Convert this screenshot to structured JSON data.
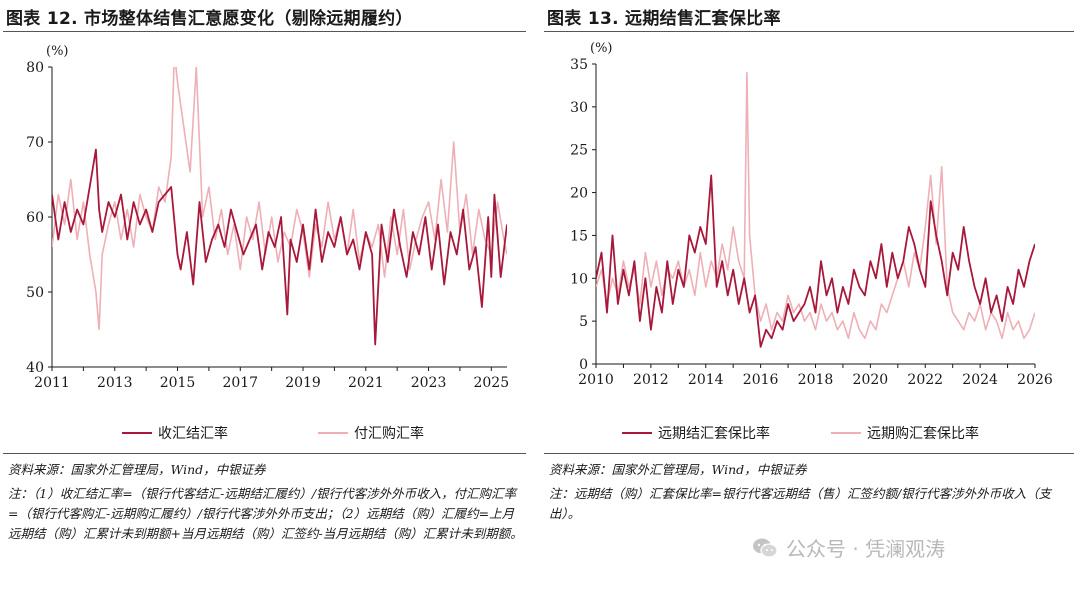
{
  "colors": {
    "primary": "#a8183a",
    "secondary": "#eeb0b6",
    "axis": "#1a1a1a"
  },
  "left": {
    "title": "图表 12.  市场整体结售汇意愿变化（剔除远期履约）",
    "unit": "(%)",
    "source": "资料来源：国家外汇管理局，Wind，中银证券",
    "note": "注：（1）收汇结汇率=（银行代客结汇-远期结汇履约）/银行代客涉外外币收入，付汇购汇率=（银行代客购汇-远期购汇履约）/银行代客涉外外币支出；（2）远期结（购）汇履约=上月远期结（购）汇累计未到期额+当月远期结（购）汇签约-当月远期结（购）汇累计未到期额。",
    "legend": [
      "收汇结汇率",
      "付汇购汇率"
    ]
  },
  "right": {
    "title": "图表 13.  远期结售汇套保比率",
    "unit": "(%)",
    "source": "资料来源：国家外汇管理局，Wind，中银证券",
    "note": "注：远期结（购）汇套保比率=银行代客远期结（售）汇签约额/银行代客涉外外币收入（支出）。",
    "legend": [
      "远期结汇套保比率",
      "远期购汇套保比率"
    ]
  },
  "watermark": {
    "text": "公众号 · 凭澜观涛",
    "icon": "wechat-icon"
  },
  "chart_data": [
    {
      "type": "line",
      "title": "图表 12.  市场整体结售汇意愿变化（剔除远期履约）",
      "ylabel": "(%)",
      "ylim": [
        40,
        80
      ],
      "yticks": [
        40,
        50,
        60,
        70,
        80
      ],
      "xlim": [
        2011,
        2025.5
      ],
      "xticks": [
        2011,
        2013,
        2015,
        2017,
        2019,
        2021,
        2023,
        2025
      ],
      "legend_position": "bottom",
      "series": [
        {
          "name": "收汇结汇率",
          "x": [
            2011.0,
            2011.2,
            2011.4,
            2011.6,
            2011.8,
            2012.0,
            2012.2,
            2012.4,
            2012.5,
            2012.6,
            2012.8,
            2013.0,
            2013.2,
            2013.4,
            2013.6,
            2013.8,
            2014.0,
            2014.2,
            2014.4,
            2014.6,
            2014.8,
            2015.0,
            2015.1,
            2015.3,
            2015.5,
            2015.7,
            2015.9,
            2016.1,
            2016.3,
            2016.5,
            2016.7,
            2016.9,
            2017.1,
            2017.3,
            2017.5,
            2017.7,
            2017.9,
            2018.1,
            2018.3,
            2018.5,
            2018.6,
            2018.8,
            2019.0,
            2019.2,
            2019.4,
            2019.6,
            2019.8,
            2020.0,
            2020.2,
            2020.4,
            2020.6,
            2020.8,
            2021.0,
            2021.2,
            2021.3,
            2021.5,
            2021.7,
            2021.9,
            2022.1,
            2022.3,
            2022.5,
            2022.7,
            2022.9,
            2023.1,
            2023.3,
            2023.5,
            2023.7,
            2023.9,
            2024.1,
            2024.3,
            2024.5,
            2024.7,
            2024.9,
            2025.0,
            2025.1,
            2025.3,
            2025.5
          ],
          "values": [
            63,
            57,
            62,
            58,
            61,
            59,
            64,
            69,
            61,
            58,
            62,
            60,
            63,
            57,
            62,
            59,
            61,
            58,
            62,
            63,
            64,
            55,
            53,
            58,
            51,
            62,
            54,
            57,
            59,
            56,
            61,
            58,
            55,
            57,
            59,
            53,
            58,
            56,
            60,
            47,
            57,
            54,
            59,
            53,
            61,
            54,
            58,
            56,
            60,
            55,
            57,
            53,
            58,
            55,
            43,
            59,
            54,
            61,
            56,
            52,
            58,
            55,
            60,
            53,
            59,
            51,
            58,
            55,
            61,
            53,
            56,
            48,
            60,
            52,
            63,
            52,
            59
          ]
        },
        {
          "name": "付汇购汇率",
          "x": [
            2011.0,
            2011.2,
            2011.4,
            2011.6,
            2011.8,
            2012.0,
            2012.2,
            2012.4,
            2012.5,
            2012.6,
            2012.8,
            2013.0,
            2013.2,
            2013.4,
            2013.6,
            2013.8,
            2014.0,
            2014.2,
            2014.4,
            2014.6,
            2014.8,
            2014.9,
            2015.0,
            2015.2,
            2015.4,
            2015.6,
            2015.8,
            2016.0,
            2016.2,
            2016.4,
            2016.6,
            2016.8,
            2017.0,
            2017.2,
            2017.4,
            2017.6,
            2017.8,
            2018.0,
            2018.2,
            2018.4,
            2018.6,
            2018.8,
            2019.0,
            2019.2,
            2019.4,
            2019.6,
            2019.8,
            2020.0,
            2020.2,
            2020.4,
            2020.6,
            2020.8,
            2021.0,
            2021.2,
            2021.4,
            2021.6,
            2021.8,
            2022.0,
            2022.2,
            2022.4,
            2022.6,
            2022.8,
            2023.0,
            2023.2,
            2023.4,
            2023.6,
            2023.8,
            2024.0,
            2024.2,
            2024.4,
            2024.6,
            2024.8,
            2025.0,
            2025.2,
            2025.4,
            2025.5
          ],
          "values": [
            56,
            63,
            59,
            65,
            57,
            62,
            55,
            50,
            45,
            55,
            59,
            62,
            57,
            61,
            56,
            63,
            60,
            58,
            64,
            62,
            68,
            82,
            78,
            72,
            66,
            80,
            60,
            64,
            57,
            61,
            55,
            59,
            53,
            60,
            57,
            62,
            55,
            60,
            54,
            58,
            56,
            61,
            58,
            52,
            59,
            56,
            62,
            57,
            60,
            55,
            61,
            54,
            58,
            56,
            59,
            52,
            60,
            55,
            61,
            53,
            57,
            60,
            62,
            57,
            65,
            58,
            70,
            58,
            63,
            55,
            61,
            57,
            55,
            62,
            57,
            55
          ]
        }
      ]
    },
    {
      "type": "line",
      "title": "图表 13.  远期结售汇套保比率",
      "ylabel": "(%)",
      "ylim": [
        0,
        35
      ],
      "yticks": [
        0,
        5,
        10,
        15,
        20,
        25,
        30,
        35
      ],
      "xlim": [
        2010,
        2026
      ],
      "xticks": [
        2010,
        2012,
        2014,
        2016,
        2018,
        2020,
        2022,
        2024,
        2026
      ],
      "legend_position": "bottom",
      "series": [
        {
          "name": "远期结汇套保比率",
          "x": [
            2010.0,
            2010.2,
            2010.4,
            2010.6,
            2010.8,
            2011.0,
            2011.2,
            2011.4,
            2011.6,
            2011.8,
            2012.0,
            2012.2,
            2012.4,
            2012.6,
            2012.8,
            2013.0,
            2013.2,
            2013.4,
            2013.6,
            2013.8,
            2014.0,
            2014.2,
            2014.4,
            2014.6,
            2014.8,
            2015.0,
            2015.2,
            2015.4,
            2015.6,
            2015.8,
            2016.0,
            2016.2,
            2016.4,
            2016.6,
            2016.8,
            2017.0,
            2017.2,
            2017.4,
            2017.6,
            2017.8,
            2018.0,
            2018.2,
            2018.4,
            2018.6,
            2018.8,
            2019.0,
            2019.2,
            2019.4,
            2019.6,
            2019.8,
            2020.0,
            2020.2,
            2020.4,
            2020.6,
            2020.8,
            2021.0,
            2021.2,
            2021.4,
            2021.6,
            2021.8,
            2022.0,
            2022.2,
            2022.4,
            2022.6,
            2022.8,
            2023.0,
            2023.2,
            2023.4,
            2023.6,
            2023.8,
            2024.0,
            2024.2,
            2024.4,
            2024.6,
            2024.8,
            2025.0,
            2025.2,
            2025.4,
            2025.6,
            2025.8,
            2026.0
          ],
          "values": [
            10,
            13,
            6,
            15,
            7,
            11,
            8,
            12,
            5,
            10,
            4,
            9,
            6,
            12,
            7,
            11,
            9,
            15,
            13,
            16,
            14,
            22,
            9,
            12,
            8,
            11,
            7,
            10,
            6,
            8,
            2,
            4,
            3,
            5,
            4,
            7,
            5,
            6,
            7,
            9,
            6,
            12,
            8,
            10,
            6,
            9,
            7,
            11,
            9,
            8,
            12,
            10,
            14,
            9,
            13,
            10,
            12,
            16,
            14,
            11,
            9,
            19,
            15,
            12,
            8,
            13,
            11,
            16,
            12,
            9,
            7,
            10,
            6,
            8,
            5,
            9,
            7,
            11,
            9,
            12,
            14
          ]
        },
        {
          "name": "远期购汇套保比率",
          "x": [
            2010.0,
            2010.2,
            2010.4,
            2010.6,
            2010.8,
            2011.0,
            2011.2,
            2011.4,
            2011.6,
            2011.8,
            2012.0,
            2012.2,
            2012.4,
            2012.6,
            2012.8,
            2013.0,
            2013.2,
            2013.4,
            2013.6,
            2013.8,
            2014.0,
            2014.2,
            2014.4,
            2014.6,
            2014.8,
            2015.0,
            2015.2,
            2015.4,
            2015.5,
            2015.6,
            2015.8,
            2016.0,
            2016.2,
            2016.4,
            2016.6,
            2016.8,
            2017.0,
            2017.2,
            2017.4,
            2017.6,
            2017.8,
            2018.0,
            2018.2,
            2018.4,
            2018.6,
            2018.8,
            2019.0,
            2019.2,
            2019.4,
            2019.6,
            2019.8,
            2020.0,
            2020.2,
            2020.4,
            2020.6,
            2020.8,
            2021.0,
            2021.2,
            2021.4,
            2021.6,
            2021.8,
            2022.0,
            2022.2,
            2022.4,
            2022.6,
            2022.8,
            2023.0,
            2023.2,
            2023.4,
            2023.6,
            2023.8,
            2024.0,
            2024.2,
            2024.4,
            2024.6,
            2024.8,
            2025.0,
            2025.2,
            2025.4,
            2025.6,
            2025.8,
            2026.0
          ],
          "values": [
            9,
            11,
            7,
            10,
            8,
            12,
            9,
            11,
            7,
            13,
            9,
            12,
            8,
            11,
            10,
            12,
            9,
            11,
            8,
            13,
            9,
            12,
            10,
            14,
            11,
            16,
            12,
            10,
            34,
            15,
            8,
            5,
            7,
            4,
            6,
            5,
            8,
            6,
            7,
            5,
            6,
            4,
            7,
            5,
            6,
            4,
            5,
            3,
            6,
            4,
            3,
            5,
            4,
            7,
            6,
            8,
            10,
            12,
            9,
            13,
            11,
            16,
            22,
            14,
            23,
            9,
            6,
            5,
            4,
            6,
            5,
            7,
            4,
            6,
            5,
            3,
            6,
            4,
            5,
            3,
            4,
            6
          ]
        }
      ]
    }
  ]
}
